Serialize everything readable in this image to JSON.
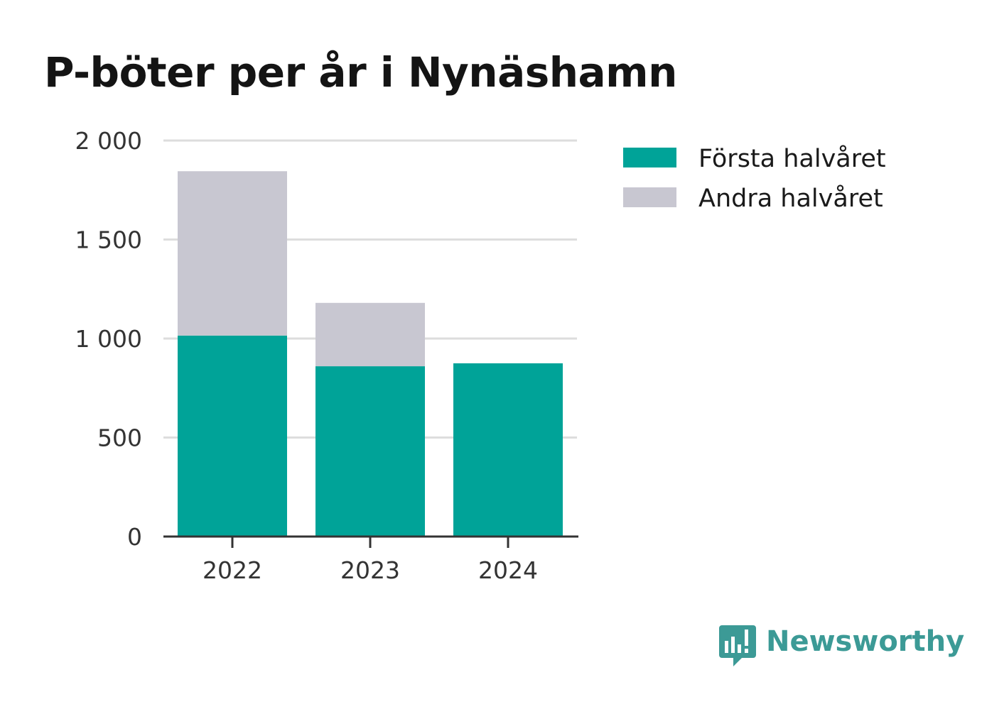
{
  "title": "P-böter per år i Nynäshamn",
  "brand": {
    "name": "Newsworthy",
    "icon": "newsworthy-logo-icon",
    "color": "#3c9a96"
  },
  "colors": {
    "first_half": "#00a398",
    "second_half": "#c8c7d1",
    "grid": "#dddddd",
    "axis": "#333333"
  },
  "chart_data": {
    "type": "bar",
    "stacked": true,
    "categories": [
      "2022",
      "2023",
      "2024"
    ],
    "series": [
      {
        "name": "Första halvåret",
        "values": [
          1015,
          860,
          875
        ],
        "color": "#00a398"
      },
      {
        "name": "Andra halvåret",
        "values": [
          830,
          320,
          0
        ],
        "color": "#c8c7d1"
      }
    ],
    "ylim": [
      0,
      2000
    ],
    "yticks": [
      0,
      500,
      1000,
      1500,
      2000
    ],
    "ytick_labels": [
      "0",
      "500",
      "1 000",
      "1 500",
      "2 000"
    ],
    "grid": true,
    "legend": "top-right"
  }
}
